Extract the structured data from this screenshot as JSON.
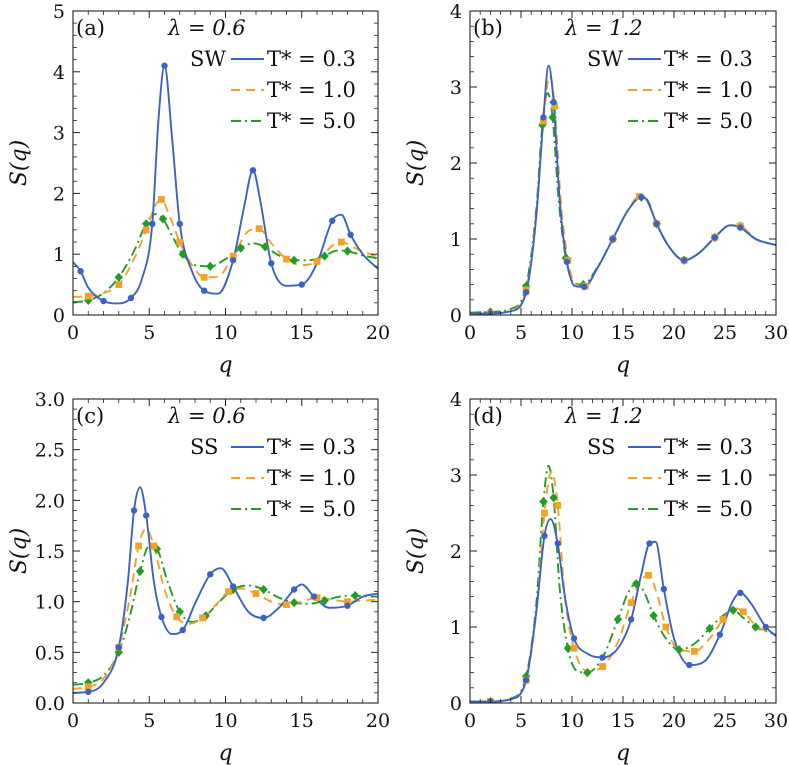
{
  "chart_data": [
    {
      "type": "line",
      "panel_label": "(a)",
      "lambda_text": "λ = 0.6",
      "model_label": "SW",
      "xlabel": "q",
      "ylabel": "S(q)",
      "xlim": [
        0,
        20
      ],
      "ylim": [
        0,
        5
      ],
      "xticks": [
        0,
        5,
        10,
        15,
        20
      ],
      "yticks": [
        0,
        1,
        2,
        3,
        4,
        5
      ],
      "ytick_labels": [
        "0",
        "1",
        "2",
        "3",
        "4",
        "5"
      ],
      "series": [
        {
          "name": "T* = 0.3",
          "color": "#3b62c4",
          "dash": "solid",
          "marker": "circle",
          "x": [
            0.0,
            0.5,
            1.0,
            2.0,
            3.0,
            3.8,
            4.5,
            5.2,
            5.6,
            6.0,
            6.5,
            7.0,
            7.8,
            8.6,
            9.5,
            10.5,
            11.2,
            11.8,
            12.3,
            13.0,
            14.0,
            15.0,
            16.0,
            17.0,
            17.6,
            18.2,
            19.0,
            20.0
          ],
          "y": [
            0.87,
            0.72,
            0.45,
            0.23,
            0.19,
            0.28,
            0.58,
            1.5,
            3.2,
            4.1,
            2.9,
            1.5,
            0.72,
            0.4,
            0.35,
            0.9,
            1.75,
            2.38,
            1.85,
            0.85,
            0.48,
            0.5,
            0.85,
            1.55,
            1.65,
            1.32,
            1.0,
            0.76
          ]
        },
        {
          "name": "T* = 1.0",
          "color": "#f2a22a",
          "dash": "dashed",
          "marker": "square",
          "x": [
            0.0,
            1.0,
            2.0,
            3.0,
            4.0,
            4.8,
            5.4,
            5.8,
            6.3,
            7.0,
            7.8,
            8.6,
            9.5,
            10.5,
            11.5,
            12.2,
            13.0,
            14.0,
            15.0,
            16.0,
            17.0,
            17.6,
            18.5,
            20.0
          ],
          "y": [
            0.3,
            0.31,
            0.36,
            0.5,
            0.92,
            1.4,
            1.8,
            1.9,
            1.65,
            1.2,
            0.82,
            0.62,
            0.63,
            0.97,
            1.38,
            1.42,
            1.18,
            0.92,
            0.82,
            0.88,
            1.14,
            1.2,
            1.1,
            0.95
          ]
        },
        {
          "name": "T* = 5.0",
          "color": "#239b25",
          "dash": "dashdot",
          "marker": "diamond",
          "x": [
            0.0,
            1.0,
            2.0,
            3.0,
            4.0,
            4.8,
            5.4,
            5.9,
            6.5,
            7.2,
            8.0,
            9.0,
            10.0,
            11.0,
            11.8,
            12.6,
            13.5,
            14.5,
            15.5,
            16.5,
            17.3,
            18.0,
            19.0,
            20.0
          ],
          "y": [
            0.21,
            0.24,
            0.36,
            0.62,
            1.05,
            1.5,
            1.66,
            1.58,
            1.3,
            1.0,
            0.82,
            0.8,
            0.92,
            1.1,
            1.18,
            1.12,
            0.98,
            0.9,
            0.9,
            0.97,
            1.06,
            1.05,
            0.98,
            0.93
          ]
        }
      ]
    },
    {
      "type": "line",
      "panel_label": "(b)",
      "lambda_text": "λ = 1.2",
      "model_label": "SW",
      "xlabel": "q",
      "ylabel": "S(q)",
      "xlim": [
        0,
        30
      ],
      "ylim": [
        0,
        4
      ],
      "xticks": [
        0,
        5,
        10,
        15,
        20,
        25,
        30
      ],
      "yticks": [
        0,
        1,
        2,
        3,
        4
      ],
      "ytick_labels": [
        "0",
        "1",
        "2",
        "3",
        "4"
      ],
      "series": [
        {
          "name": "T* = 0.3",
          "color": "#3b62c4",
          "dash": "solid",
          "marker": "circle",
          "x": [
            0.0,
            2.0,
            4.0,
            5.5,
            6.5,
            7.2,
            7.7,
            8.2,
            8.8,
            9.5,
            10.3,
            11.2,
            12.5,
            14.0,
            15.5,
            16.8,
            17.3,
            18.3,
            19.5,
            21.0,
            22.5,
            24.0,
            25.5,
            26.5,
            28.0,
            30.0
          ],
          "y": [
            0.02,
            0.02,
            0.05,
            0.3,
            1.3,
            2.6,
            3.28,
            2.8,
            1.5,
            0.7,
            0.38,
            0.37,
            0.62,
            1.0,
            1.38,
            1.55,
            1.52,
            1.2,
            0.9,
            0.72,
            0.82,
            1.02,
            1.18,
            1.15,
            1.0,
            0.92
          ]
        },
        {
          "name": "T* = 1.0",
          "color": "#f2a22a",
          "dash": "dashed",
          "marker": "square",
          "x": [
            0.0,
            2.0,
            4.0,
            5.5,
            6.5,
            7.2,
            7.8,
            8.3,
            8.9,
            9.6,
            10.4,
            11.3,
            12.5,
            14.0,
            15.5,
            16.6,
            17.3,
            18.3,
            19.5,
            21.0,
            22.5,
            24.0,
            25.5,
            26.5,
            28.0,
            30.0
          ],
          "y": [
            0.02,
            0.02,
            0.06,
            0.33,
            1.35,
            2.55,
            3.15,
            2.75,
            1.5,
            0.72,
            0.4,
            0.38,
            0.62,
            1.0,
            1.38,
            1.56,
            1.52,
            1.2,
            0.9,
            0.72,
            0.82,
            1.02,
            1.18,
            1.17,
            1.0,
            0.92
          ]
        },
        {
          "name": "T* = 5.0",
          "color": "#239b25",
          "dash": "dashdot",
          "marker": "diamond",
          "x": [
            0.0,
            2.0,
            4.0,
            5.5,
            6.5,
            7.1,
            7.6,
            8.1,
            8.7,
            9.4,
            10.2,
            11.1,
            12.5,
            14.0,
            15.5,
            16.8,
            17.3,
            18.3,
            19.5,
            21.0,
            22.5,
            24.0,
            25.5,
            26.5,
            28.0,
            30.0
          ],
          "y": [
            0.03,
            0.04,
            0.08,
            0.38,
            1.4,
            2.5,
            2.92,
            2.6,
            1.5,
            0.75,
            0.42,
            0.4,
            0.63,
            1.0,
            1.38,
            1.55,
            1.53,
            1.2,
            0.9,
            0.72,
            0.82,
            1.02,
            1.18,
            1.17,
            1.0,
            0.92
          ]
        }
      ]
    },
    {
      "type": "line",
      "panel_label": "(c)",
      "lambda_text": "λ = 0.6",
      "model_label": "SS",
      "xlabel": "q",
      "ylabel": "S(q)",
      "xlim": [
        0,
        20
      ],
      "ylim": [
        0,
        3
      ],
      "xticks": [
        0,
        5,
        10,
        15,
        20
      ],
      "yticks": [
        0,
        0.5,
        1,
        1.5,
        2,
        2.5,
        3
      ],
      "ytick_labels": [
        "0.0",
        "0.5",
        "1.0",
        "1.5",
        "2.0",
        "2.5",
        "3.0"
      ],
      "series": [
        {
          "name": "T* = 0.3",
          "color": "#3b62c4",
          "dash": "solid",
          "marker": "circle",
          "x": [
            0.0,
            1.0,
            2.0,
            3.0,
            3.6,
            4.0,
            4.4,
            4.8,
            5.3,
            5.8,
            6.5,
            7.2,
            8.0,
            9.0,
            9.7,
            10.5,
            11.5,
            12.5,
            13.5,
            14.5,
            15.0,
            15.8,
            16.8,
            18.0,
            19.0,
            20.0
          ],
          "y": [
            0.1,
            0.11,
            0.2,
            0.55,
            1.2,
            1.9,
            2.13,
            1.85,
            1.2,
            0.85,
            0.68,
            0.72,
            0.98,
            1.27,
            1.33,
            1.15,
            0.9,
            0.84,
            0.94,
            1.12,
            1.17,
            1.05,
            0.94,
            0.96,
            1.05,
            1.08
          ]
        },
        {
          "name": "T* = 1.0",
          "color": "#f2a22a",
          "dash": "dashed",
          "marker": "square",
          "x": [
            0.0,
            1.0,
            2.0,
            3.0,
            3.8,
            4.3,
            4.8,
            5.3,
            6.0,
            6.8,
            7.6,
            8.5,
            9.5,
            10.2,
            11.0,
            12.0,
            13.0,
            14.0,
            15.0,
            16.0,
            17.0,
            18.0,
            19.0,
            20.0
          ],
          "y": [
            0.14,
            0.16,
            0.24,
            0.55,
            1.1,
            1.55,
            1.72,
            1.55,
            1.12,
            0.85,
            0.78,
            0.84,
            0.99,
            1.1,
            1.13,
            1.08,
            1.0,
            0.97,
            1.0,
            1.04,
            1.02,
            1.0,
            1.01,
            1.02
          ]
        },
        {
          "name": "T* = 5.0",
          "color": "#239b25",
          "dash": "dashdot",
          "marker": "diamond",
          "x": [
            0.0,
            1.0,
            2.0,
            3.0,
            3.8,
            4.4,
            5.0,
            5.5,
            6.2,
            7.0,
            7.8,
            8.7,
            9.6,
            10.5,
            11.5,
            12.5,
            13.5,
            14.5,
            15.5,
            16.5,
            17.5,
            18.5,
            19.5,
            20.0
          ],
          "y": [
            0.18,
            0.2,
            0.27,
            0.5,
            0.9,
            1.3,
            1.55,
            1.52,
            1.2,
            0.9,
            0.8,
            0.86,
            1.0,
            1.12,
            1.16,
            1.12,
            1.04,
            0.99,
            0.98,
            1.01,
            1.05,
            1.06,
            1.05,
            1.05
          ]
        }
      ]
    },
    {
      "type": "line",
      "panel_label": "(d)",
      "lambda_text": "λ = 1.2",
      "model_label": "SS",
      "xlabel": "q",
      "ylabel": "S(q)",
      "xlim": [
        0,
        30
      ],
      "ylim": [
        0,
        4
      ],
      "xticks": [
        0,
        5,
        10,
        15,
        20,
        25,
        30
      ],
      "yticks": [
        0,
        1,
        2,
        3,
        4
      ],
      "ytick_labels": [
        "0",
        "1",
        "2",
        "3",
        "4"
      ],
      "series": [
        {
          "name": "T* = 0.3",
          "color": "#3b62c4",
          "dash": "solid",
          "marker": "circle",
          "x": [
            0.0,
            2.0,
            4.0,
            5.5,
            6.5,
            7.3,
            7.9,
            8.6,
            9.3,
            10.2,
            11.5,
            13.0,
            14.5,
            15.8,
            16.8,
            17.6,
            18.2,
            19.0,
            20.0,
            21.5,
            23.0,
            24.5,
            25.8,
            26.5,
            27.5,
            29.0,
            30.0
          ],
          "y": [
            0.02,
            0.02,
            0.05,
            0.3,
            1.2,
            2.2,
            2.42,
            2.1,
            1.4,
            0.85,
            0.65,
            0.6,
            0.72,
            1.1,
            1.7,
            2.1,
            2.12,
            1.5,
            0.85,
            0.5,
            0.55,
            0.9,
            1.35,
            1.45,
            1.32,
            1.0,
            0.88
          ]
        },
        {
          "name": "T* = 1.0",
          "color": "#f2a22a",
          "dash": "dashed",
          "marker": "square",
          "x": [
            0.0,
            2.0,
            4.0,
            5.5,
            6.5,
            7.3,
            8.0,
            8.6,
            9.3,
            10.2,
            11.5,
            13.0,
            14.5,
            15.8,
            16.8,
            17.5,
            18.3,
            19.2,
            20.5,
            22.0,
            23.5,
            24.8,
            25.8,
            26.8,
            28.0,
            30.0
          ],
          "y": [
            0.02,
            0.02,
            0.05,
            0.3,
            1.2,
            2.5,
            3.05,
            2.6,
            1.4,
            0.72,
            0.42,
            0.48,
            0.8,
            1.32,
            1.62,
            1.68,
            1.45,
            1.0,
            0.7,
            0.68,
            0.85,
            1.1,
            1.25,
            1.2,
            1.02,
            0.9
          ]
        },
        {
          "name": "T* = 5.0",
          "color": "#239b25",
          "dash": "dashdot",
          "marker": "diamond",
          "x": [
            0.0,
            2.0,
            4.0,
            5.5,
            6.5,
            7.2,
            7.7,
            8.2,
            8.8,
            9.6,
            10.5,
            11.5,
            13.0,
            14.5,
            15.5,
            16.3,
            17.0,
            18.0,
            19.2,
            20.5,
            22.0,
            23.5,
            24.8,
            25.8,
            26.8,
            28.0,
            30.0
          ],
          "y": [
            0.02,
            0.02,
            0.06,
            0.35,
            1.3,
            2.65,
            3.12,
            2.7,
            1.5,
            0.72,
            0.42,
            0.4,
            0.6,
            1.1,
            1.45,
            1.57,
            1.48,
            1.15,
            0.85,
            0.7,
            0.78,
            0.98,
            1.15,
            1.22,
            1.12,
            1.0,
            0.9
          ]
        }
      ]
    }
  ]
}
